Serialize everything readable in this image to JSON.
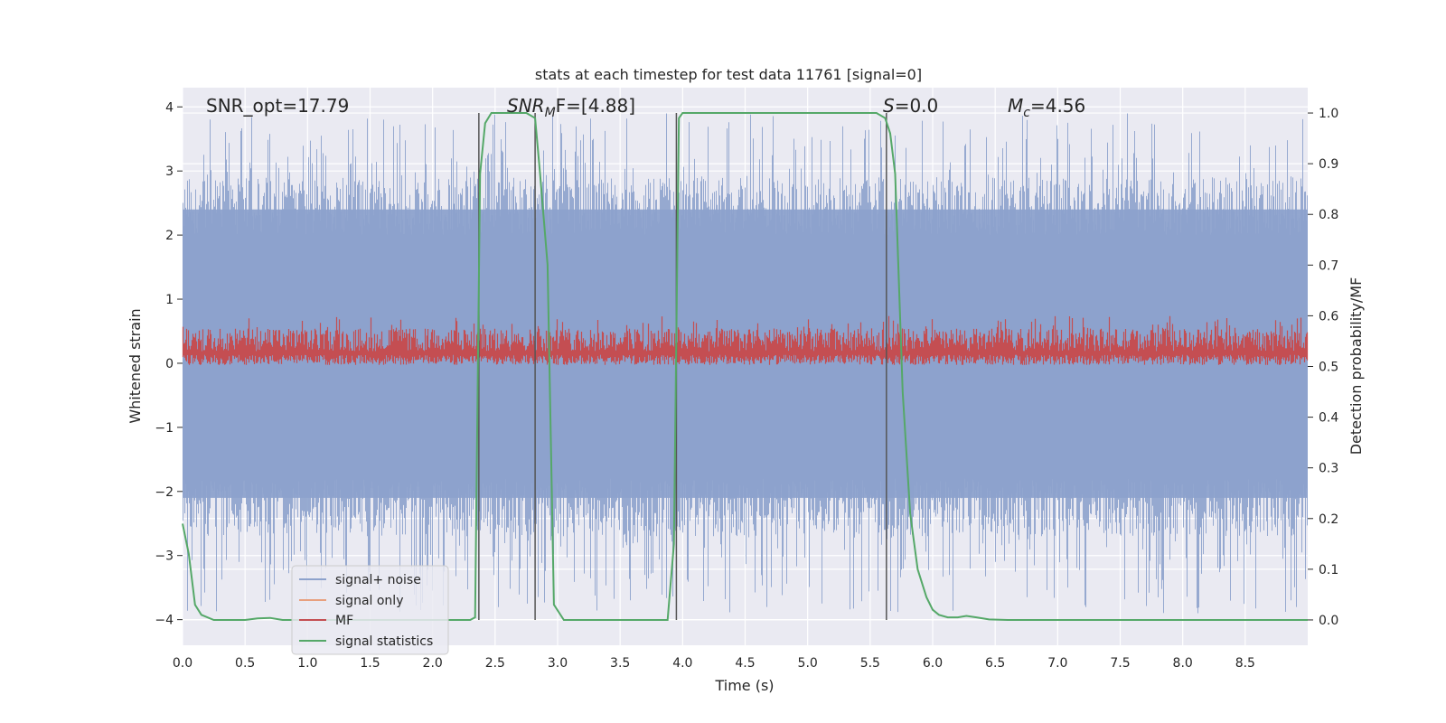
{
  "chart_data": {
    "type": "line",
    "title": "stats at each timestep for test data 11761 [signal=0]",
    "xlabel": "Time (s)",
    "ylabel": "Whitened strain",
    "y2label": "Detection probability/MF",
    "xlim": [
      0,
      9.0
    ],
    "ylim": [
      -4.4,
      4.3
    ],
    "y2lim": [
      -0.05,
      1.05
    ],
    "grid": true,
    "legend_placement": "lower-left",
    "x_ticks": [
      0.0,
      0.5,
      1.0,
      1.5,
      2.0,
      2.5,
      3.0,
      3.5,
      4.0,
      4.5,
      5.0,
      5.5,
      6.0,
      6.5,
      7.0,
      7.5,
      8.0,
      8.5
    ],
    "x_tick_labels": [
      "0.0",
      "0.5",
      "1.0",
      "1.5",
      "2.0",
      "2.5",
      "3.0",
      "3.5",
      "4.0",
      "4.5",
      "5.0",
      "5.5",
      "6.0",
      "6.5",
      "7.0",
      "7.5",
      "8.0",
      "8.5"
    ],
    "y_ticks": [
      4,
      3,
      2,
      1,
      0,
      -1,
      -2,
      -3,
      -4
    ],
    "y_tick_labels": [
      "4",
      "3",
      "2",
      "1",
      "0",
      "−1",
      "−2",
      "−3",
      "−4"
    ],
    "y2_ticks": [
      1.0,
      0.9,
      0.8,
      0.7,
      0.6,
      0.5,
      0.4,
      0.3,
      0.2,
      0.1,
      0.0
    ],
    "y2_tick_labels": [
      "1.0",
      "0.9",
      "0.8",
      "0.7",
      "0.6",
      "0.5",
      "0.4",
      "0.3",
      "0.2",
      "0.1",
      "0.0"
    ],
    "annotations": {
      "snr_opt": "SNR_opt=17.79",
      "snr_mf_main": "SNR",
      "snr_mf_sub": "M",
      "snr_mf_rest": "F=[4.88]",
      "s_main": "S",
      "s_rest": "=0.0",
      "mc_main": "M",
      "mc_sub": "c",
      "mc_rest": "=4.56"
    },
    "series": [
      {
        "name": "signal+ noise",
        "color": "#8da2cc",
        "description": "dense whitened strain noise",
        "amplitude_band": [
          -3.9,
          3.9
        ],
        "core_band": [
          -2.1,
          2.4
        ]
      },
      {
        "name": "signal only",
        "color": "#e8a07e",
        "description": "zero signal"
      },
      {
        "name": "MF",
        "color": "#c44e52",
        "axis": "right",
        "band": [
          0.5,
          0.61
        ]
      },
      {
        "name": "signal statistics",
        "color": "#55a868",
        "axis": "right",
        "points": [
          [
            0.0,
            0.19
          ],
          [
            0.05,
            0.13
          ],
          [
            0.1,
            0.03
          ],
          [
            0.15,
            0.01
          ],
          [
            0.25,
            0.0
          ],
          [
            0.5,
            0.0
          ],
          [
            0.6,
            0.003
          ],
          [
            0.7,
            0.004
          ],
          [
            0.8,
            0.0
          ],
          [
            1.0,
            0.0
          ],
          [
            2.3,
            0.0
          ],
          [
            2.34,
            0.005
          ],
          [
            2.38,
            0.88
          ],
          [
            2.42,
            0.98
          ],
          [
            2.47,
            1.0
          ],
          [
            2.75,
            1.0
          ],
          [
            2.82,
            0.99
          ],
          [
            2.86,
            0.88
          ],
          [
            2.92,
            0.7
          ],
          [
            2.97,
            0.03
          ],
          [
            3.05,
            0.0
          ],
          [
            3.88,
            0.0
          ],
          [
            3.93,
            0.15
          ],
          [
            3.97,
            0.99
          ],
          [
            4.0,
            1.0
          ],
          [
            5.55,
            1.0
          ],
          [
            5.62,
            0.99
          ],
          [
            5.66,
            0.96
          ],
          [
            5.7,
            0.88
          ],
          [
            5.76,
            0.45
          ],
          [
            5.82,
            0.21
          ],
          [
            5.88,
            0.1
          ],
          [
            5.95,
            0.045
          ],
          [
            6.0,
            0.02
          ],
          [
            6.05,
            0.01
          ],
          [
            6.12,
            0.005
          ],
          [
            6.2,
            0.005
          ],
          [
            6.27,
            0.008
          ],
          [
            6.35,
            0.005
          ],
          [
            6.45,
            0.001
          ],
          [
            6.6,
            0.0
          ],
          [
            9.0,
            0.0
          ]
        ]
      }
    ],
    "vertical_markers": [
      2.37,
      2.82,
      3.95,
      5.63
    ]
  },
  "colors": {
    "axes_bg": "#eaeaf2",
    "grid": "#ffffff",
    "marker_line": "#555555"
  }
}
